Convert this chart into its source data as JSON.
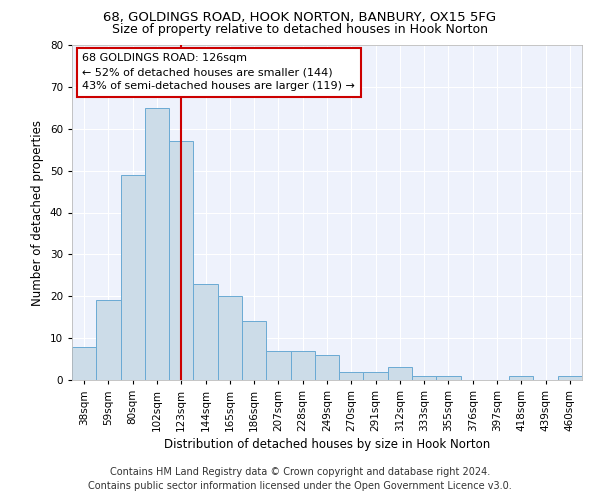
{
  "title_line1": "68, GOLDINGS ROAD, HOOK NORTON, BANBURY, OX15 5FG",
  "title_line2": "Size of property relative to detached houses in Hook Norton",
  "xlabel": "Distribution of detached houses by size in Hook Norton",
  "ylabel": "Number of detached properties",
  "categories": [
    "38sqm",
    "59sqm",
    "80sqm",
    "102sqm",
    "123sqm",
    "144sqm",
    "165sqm",
    "186sqm",
    "207sqm",
    "228sqm",
    "249sqm",
    "270sqm",
    "291sqm",
    "312sqm",
    "333sqm",
    "355sqm",
    "376sqm",
    "397sqm",
    "418sqm",
    "439sqm",
    "460sqm"
  ],
  "values": [
    8,
    19,
    49,
    65,
    57,
    23,
    20,
    14,
    7,
    7,
    6,
    2,
    2,
    3,
    1,
    1,
    0,
    0,
    1,
    0,
    1
  ],
  "bar_color": "#ccdce8",
  "bar_edge_color": "#6aaad4",
  "bar_linewidth": 0.7,
  "vline_color": "#cc0000",
  "vline_x": 4.5,
  "annotation_text": "68 GOLDINGS ROAD: 126sqm\n← 52% of detached houses are smaller (144)\n43% of semi-detached houses are larger (119) →",
  "annotation_box_color": "white",
  "annotation_box_edge": "#cc0000",
  "ylim": [
    0,
    80
  ],
  "yticks": [
    0,
    10,
    20,
    30,
    40,
    50,
    60,
    70,
    80
  ],
  "background_color": "#eef2fc",
  "footer_line1": "Contains HM Land Registry data © Crown copyright and database right 2024.",
  "footer_line2": "Contains public sector information licensed under the Open Government Licence v3.0.",
  "title_fontsize": 9.5,
  "subtitle_fontsize": 9,
  "axis_label_fontsize": 8.5,
  "tick_fontsize": 7.5,
  "annotation_fontsize": 8,
  "footer_fontsize": 7
}
